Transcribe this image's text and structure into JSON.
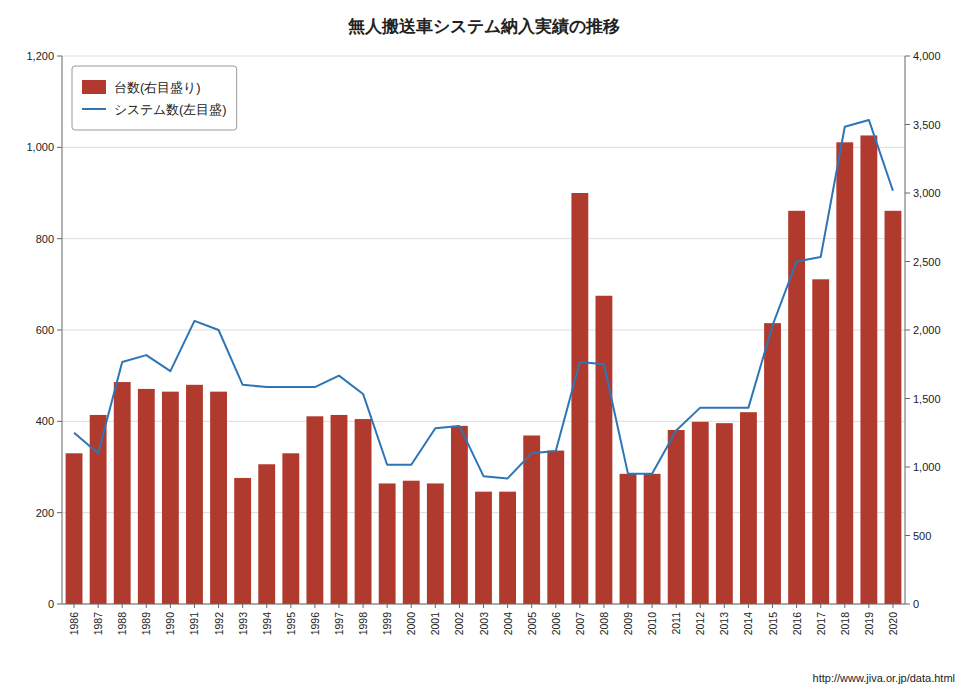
{
  "chart_data": {
    "type": "bar",
    "title": "無人搬送車システム納入実績の推移",
    "categories": [
      "1986",
      "1987",
      "1988",
      "1989",
      "1990",
      "1991",
      "1992",
      "1993",
      "1994",
      "1995",
      "1996",
      "1997",
      "1998",
      "1999",
      "2000",
      "2001",
      "2002",
      "2003",
      "2004",
      "2005",
      "2006",
      "2007",
      "2008",
      "2009",
      "2010",
      "2011",
      "2012",
      "2013",
      "2014",
      "2015",
      "2016",
      "2017",
      "2018",
      "2019",
      "2020"
    ],
    "series": [
      {
        "name": "台数(右目盛り)",
        "type": "bar",
        "axis": "y2",
        "color": "#B03A2E",
        "values": [
          1100,
          1380,
          1620,
          1570,
          1550,
          1600,
          1550,
          920,
          1020,
          1100,
          1370,
          1380,
          1350,
          880,
          900,
          880,
          1300,
          820,
          820,
          1230,
          1120,
          3000,
          2250,
          950,
          950,
          1270,
          1330,
          1320,
          1400,
          2050,
          2870,
          2370,
          3370,
          3420,
          2870
        ]
      },
      {
        "name": "システム数(左目盛)",
        "type": "line",
        "color": "#2E75B6",
        "values": [
          375,
          330,
          530,
          545,
          510,
          620,
          600,
          480,
          475,
          475,
          475,
          500,
          460,
          305,
          305,
          385,
          390,
          280,
          275,
          330,
          335,
          530,
          525,
          285,
          285,
          380,
          430,
          430,
          430,
          610,
          750,
          760,
          1045,
          1060,
          905
        ]
      }
    ],
    "ylim": [
      0,
      1200
    ],
    "yticks": [
      0,
      200,
      400,
      600,
      800,
      {
        "value": 1000,
        "label": "1,000"
      },
      {
        "value": 1200,
        "label": "1,200"
      }
    ],
    "y2lim": [
      0,
      4000
    ],
    "y2ticks": [
      0,
      500,
      {
        "value": 1000,
        "label": "1,000"
      },
      {
        "value": 1500,
        "label": "1,500"
      },
      {
        "value": 2000,
        "label": "2,000"
      },
      {
        "value": 2500,
        "label": "2,500"
      },
      {
        "value": 3000,
        "label": "3,000"
      },
      {
        "value": 3500,
        "label": "3,500"
      },
      {
        "value": 4000,
        "label": "4,000"
      }
    ],
    "grid": true,
    "legend": "upper-left",
    "annotations": [
      "http://www.jiva.or.jp/data.html"
    ]
  }
}
